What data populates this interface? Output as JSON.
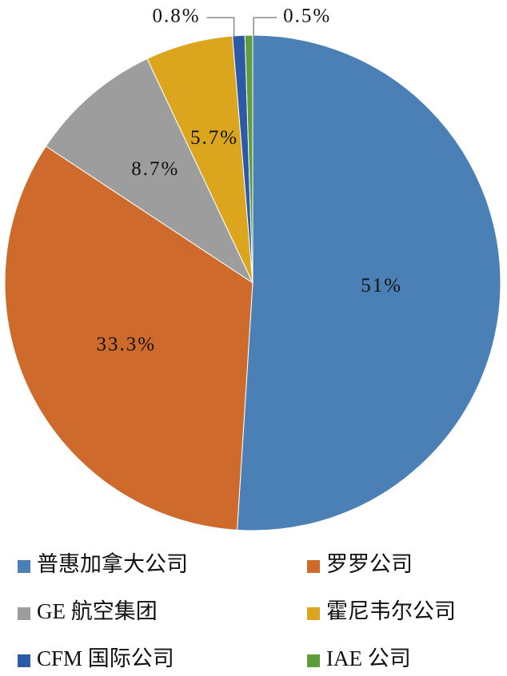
{
  "chart_data": {
    "type": "pie",
    "categories": [
      "普惠加拿大公司",
      "罗罗公司",
      "GE 航空集团",
      "霍尼韦尔公司",
      "CFM 国际公司",
      "IAE 公司"
    ],
    "values": [
      51,
      33.3,
      8.7,
      5.7,
      0.8,
      0.5
    ],
    "value_labels": [
      "51%",
      "33.3%",
      "8.7%",
      "5.7%",
      "0.8%",
      "0.5%"
    ],
    "colors": [
      "#4a80b5",
      "#cd6a2c",
      "#9d9d9d",
      "#dba61d",
      "#2d5aa6",
      "#5f9c3e"
    ]
  }
}
